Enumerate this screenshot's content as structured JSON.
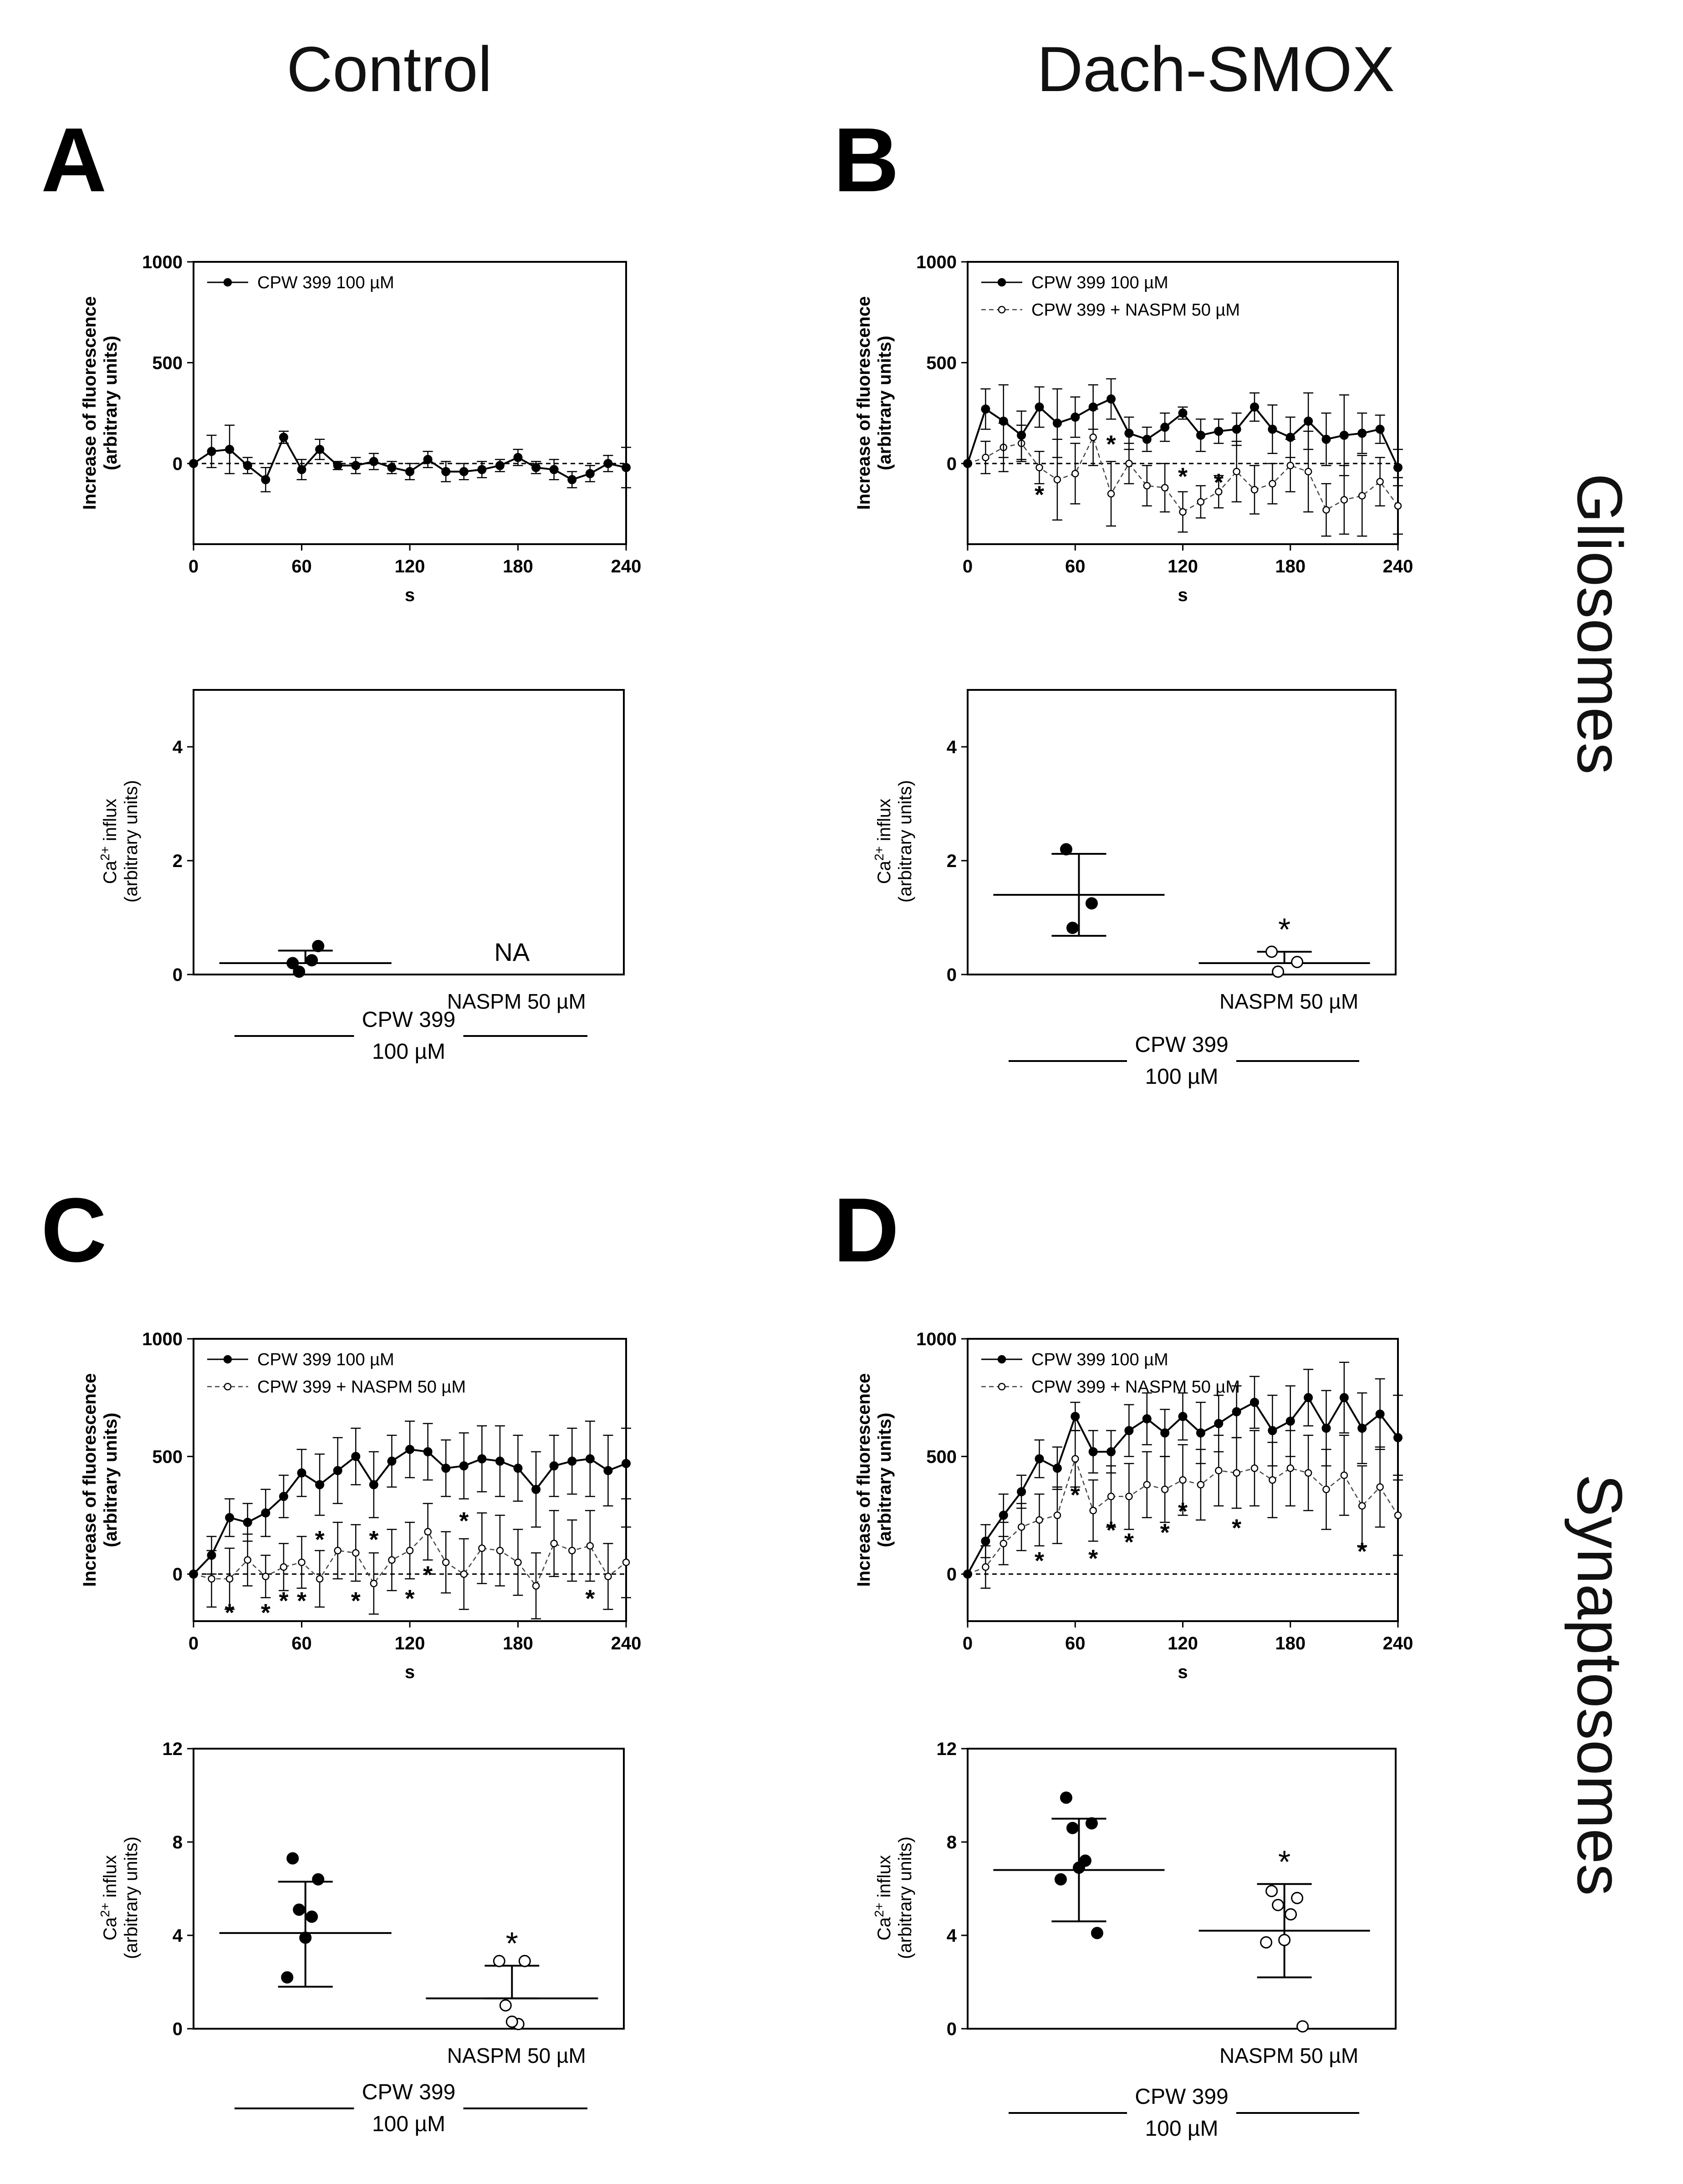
{
  "figure": {
    "columns": [
      "Control",
      "Dach-SMOX"
    ],
    "rows": [
      "Gliosomes",
      "Synaptosomes"
    ]
  },
  "chart_data": [
    {
      "id": "A-line",
      "panel": "A",
      "type": "line",
      "xlabel": "s",
      "ylabel": "Increase of fluorescence\n(arbitrary units)",
      "xlim": [
        0,
        240
      ],
      "ylim": [
        -400,
        1000
      ],
      "xticks": [
        0,
        60,
        120,
        180,
        240
      ],
      "yticks": [
        0,
        500,
        1000
      ],
      "baseline": 0,
      "series": [
        {
          "name": "CPW 399 100 µM",
          "style": "filled",
          "x": [
            0,
            10,
            20,
            30,
            40,
            50,
            60,
            70,
            80,
            90,
            100,
            110,
            120,
            130,
            140,
            150,
            160,
            170,
            180,
            190,
            200,
            210,
            220,
            230,
            240
          ],
          "y": [
            0,
            60,
            70,
            -10,
            -80,
            130,
            -30,
            70,
            -10,
            -10,
            10,
            -20,
            -40,
            20,
            -40,
            -40,
            -30,
            -10,
            30,
            -20,
            -30,
            -80,
            -50,
            0,
            -20
          ],
          "err": [
            0,
            80,
            120,
            40,
            60,
            30,
            50,
            50,
            20,
            40,
            40,
            30,
            40,
            40,
            50,
            40,
            40,
            30,
            40,
            30,
            50,
            40,
            40,
            40,
            100
          ]
        }
      ],
      "stars": []
    },
    {
      "id": "A-dot",
      "panel": "A",
      "type": "scatter",
      "ylabel": "Ca2+ influx\n(arbitrary units)",
      "ylim": [
        0,
        5
      ],
      "yticks": [
        0,
        2,
        4
      ],
      "categories": [
        "",
        "NASPM 50 µM"
      ],
      "group_label": [
        "CPW 399",
        "100 µM"
      ],
      "groups": [
        {
          "points": [
            0.2,
            0.5,
            0.05,
            0.25
          ],
          "mean": 0.2,
          "upper": 0.42,
          "lower": 0.2,
          "filled": true,
          "star": false
        },
        {
          "na": "NA"
        }
      ]
    },
    {
      "id": "B-line",
      "panel": "B",
      "type": "line",
      "xlabel": "s",
      "ylabel": "Increase of fluorescence\n(arbitrary units)",
      "xlim": [
        0,
        240
      ],
      "ylim": [
        -400,
        1000
      ],
      "xticks": [
        0,
        60,
        120,
        180,
        240
      ],
      "yticks": [
        0,
        500,
        1000
      ],
      "baseline": 0,
      "series": [
        {
          "name": "CPW 399 100 µM",
          "style": "filled",
          "x": [
            0,
            10,
            20,
            30,
            40,
            50,
            60,
            70,
            80,
            90,
            100,
            110,
            120,
            130,
            140,
            150,
            160,
            170,
            180,
            190,
            200,
            210,
            220,
            230,
            240
          ],
          "y": [
            0,
            270,
            210,
            140,
            280,
            200,
            230,
            280,
            320,
            150,
            120,
            180,
            250,
            140,
            160,
            170,
            280,
            170,
            130,
            210,
            120,
            140,
            150,
            170,
            -20
          ],
          "err": [
            0,
            100,
            180,
            120,
            100,
            170,
            100,
            110,
            100,
            80,
            60,
            70,
            30,
            80,
            60,
            80,
            70,
            120,
            100,
            140,
            130,
            200,
            100,
            70,
            90
          ]
        },
        {
          "name": "CPW 399 + NASPM 50  µM",
          "style": "open",
          "x": [
            0,
            10,
            20,
            30,
            40,
            50,
            60,
            70,
            80,
            90,
            100,
            110,
            120,
            130,
            140,
            150,
            160,
            170,
            180,
            190,
            200,
            210,
            220,
            230,
            240
          ],
          "y": [
            0,
            30,
            80,
            100,
            -20,
            -80,
            -50,
            130,
            -150,
            0,
            -110,
            -120,
            -240,
            -190,
            -140,
            -40,
            -130,
            -100,
            -10,
            -40,
            -230,
            -180,
            -160,
            -90,
            -210
          ],
          "err": [
            0,
            80,
            120,
            90,
            80,
            200,
            150,
            140,
            160,
            100,
            100,
            120,
            100,
            80,
            80,
            150,
            120,
            100,
            130,
            200,
            130,
            170,
            200,
            120,
            140
          ]
        }
      ],
      "stars": [
        {
          "x": 40,
          "y": -150
        },
        {
          "x": 80,
          "y": 100
        },
        {
          "x": 120,
          "y": -60
        },
        {
          "x": 140,
          "y": -90
        }
      ]
    },
    {
      "id": "B-dot",
      "panel": "B",
      "type": "scatter",
      "ylabel": "Ca2+ influx\n(arbitrary units)",
      "ylim": [
        0,
        5
      ],
      "yticks": [
        0,
        2,
        4
      ],
      "categories": [
        "",
        "NASPM 50 µM"
      ],
      "group_label": [
        "CPW 399",
        "100 µM"
      ],
      "groups": [
        {
          "points": [
            2.2,
            1.25,
            0.82
          ],
          "mean": 1.4,
          "upper": 2.12,
          "lower": 0.68,
          "filled": true,
          "star": false
        },
        {
          "points": [
            0.4,
            0.22,
            0.05
          ],
          "mean": 0.2,
          "upper": 0.4,
          "lower": 0.2,
          "filled": false,
          "star": true
        }
      ]
    },
    {
      "id": "C-line",
      "panel": "C",
      "type": "line",
      "xlabel": "s",
      "ylabel": "Increase of fluorescence\n(arbitrary units)",
      "xlim": [
        0,
        240
      ],
      "ylim": [
        -200,
        1000
      ],
      "xticks": [
        0,
        60,
        120,
        180,
        240
      ],
      "yticks": [
        0,
        500,
        1000
      ],
      "baseline": 0,
      "series": [
        {
          "name": "CPW 399 100 µM",
          "style": "filled",
          "x": [
            0,
            10,
            20,
            30,
            40,
            50,
            60,
            70,
            80,
            90,
            100,
            110,
            120,
            130,
            140,
            150,
            160,
            170,
            180,
            190,
            200,
            210,
            220,
            230,
            240
          ],
          "y": [
            0,
            80,
            240,
            220,
            260,
            330,
            430,
            380,
            440,
            500,
            380,
            480,
            530,
            520,
            450,
            460,
            490,
            480,
            450,
            360,
            460,
            480,
            490,
            440,
            470
          ],
          "err": [
            0,
            80,
            80,
            80,
            100,
            90,
            100,
            130,
            140,
            120,
            140,
            110,
            120,
            120,
            120,
            140,
            140,
            150,
            140,
            160,
            130,
            140,
            160,
            150,
            150
          ]
        },
        {
          "name": "CPW 399 + NASPM 50  µM",
          "style": "open",
          "x": [
            0,
            10,
            20,
            30,
            40,
            50,
            60,
            70,
            80,
            90,
            100,
            110,
            120,
            130,
            140,
            150,
            160,
            170,
            180,
            190,
            200,
            210,
            220,
            230,
            240
          ],
          "y": [
            0,
            -20,
            -20,
            60,
            -10,
            30,
            50,
            -20,
            100,
            90,
            -40,
            60,
            100,
            180,
            50,
            0,
            110,
            100,
            50,
            -50,
            130,
            100,
            120,
            -10,
            50
          ],
          "err": [
            0,
            120,
            130,
            110,
            90,
            100,
            110,
            120,
            120,
            120,
            130,
            130,
            120,
            120,
            130,
            150,
            150,
            150,
            140,
            140,
            140,
            130,
            150,
            140,
            150
          ]
        }
      ],
      "stars": [
        {
          "x": 20,
          "y": -160
        },
        {
          "x": 40,
          "y": -160
        },
        {
          "x": 50,
          "y": -110
        },
        {
          "x": 60,
          "y": -110
        },
        {
          "x": 70,
          "y": 150
        },
        {
          "x": 90,
          "y": -110
        },
        {
          "x": 100,
          "y": 150
        },
        {
          "x": 120,
          "y": -100
        },
        {
          "x": 130,
          "y": 0
        },
        {
          "x": 150,
          "y": 230
        },
        {
          "x": 220,
          "y": -100
        }
      ]
    },
    {
      "id": "C-dot",
      "panel": "C",
      "type": "scatter",
      "ylabel": "Ca2+ influx\n(arbitrary units)",
      "ylim": [
        0,
        12
      ],
      "yticks": [
        0,
        4,
        8,
        12
      ],
      "categories": [
        "",
        "NASPM 50 µM"
      ],
      "group_label": [
        "CPW 399",
        "100 µM"
      ],
      "groups": [
        {
          "points": [
            7.3,
            6.4,
            5.1,
            4.8,
            3.9,
            2.2
          ],
          "mean": 4.1,
          "upper": 6.3,
          "lower": 1.8,
          "filled": true,
          "star": false
        },
        {
          "points": [
            2.9,
            2.9,
            1.0,
            0.2,
            0.3
          ],
          "mean": 1.3,
          "upper": 2.7,
          "lower": 1.3,
          "filled": false,
          "star": true
        }
      ]
    },
    {
      "id": "D-line",
      "panel": "D",
      "type": "line",
      "xlabel": "s",
      "ylabel": "Increase of fluorescence\n(arbitrary units)",
      "xlim": [
        0,
        240
      ],
      "ylim": [
        -200,
        1000
      ],
      "xticks": [
        0,
        60,
        120,
        180,
        240
      ],
      "yticks": [
        0,
        500,
        1000
      ],
      "baseline": 0,
      "series": [
        {
          "name": "CPW 399 100 µM",
          "style": "filled",
          "x": [
            0,
            10,
            20,
            30,
            40,
            50,
            60,
            70,
            80,
            90,
            100,
            110,
            120,
            130,
            140,
            150,
            160,
            170,
            180,
            190,
            200,
            210,
            220,
            230,
            240
          ],
          "y": [
            0,
            140,
            250,
            350,
            490,
            450,
            670,
            520,
            520,
            610,
            660,
            600,
            670,
            600,
            640,
            690,
            730,
            610,
            650,
            750,
            620,
            750,
            620,
            680,
            580
          ],
          "err": [
            0,
            70,
            90,
            70,
            80,
            90,
            60,
            90,
            90,
            110,
            110,
            100,
            100,
            130,
            120,
            110,
            110,
            150,
            150,
            120,
            160,
            150,
            150,
            150,
            180
          ]
        },
        {
          "name": "CPW 399 + NASPM 50  µM",
          "style": "open",
          "x": [
            0,
            10,
            20,
            30,
            40,
            50,
            60,
            70,
            80,
            90,
            100,
            110,
            120,
            130,
            140,
            150,
            160,
            170,
            180,
            190,
            200,
            210,
            220,
            230,
            240
          ],
          "y": [
            0,
            30,
            130,
            200,
            230,
            250,
            490,
            270,
            330,
            330,
            380,
            360,
            400,
            380,
            440,
            430,
            450,
            400,
            450,
            430,
            360,
            420,
            290,
            370,
            250
          ],
          "err": [
            0,
            90,
            90,
            100,
            110,
            120,
            120,
            130,
            130,
            140,
            140,
            140,
            150,
            150,
            150,
            150,
            160,
            160,
            160,
            160,
            170,
            170,
            170,
            170,
            170
          ]
        }
      ],
      "stars": [
        {
          "x": 40,
          "y": 60
        },
        {
          "x": 60,
          "y": 340
        },
        {
          "x": 70,
          "y": 70
        },
        {
          "x": 80,
          "y": 190
        },
        {
          "x": 90,
          "y": 140
        },
        {
          "x": 110,
          "y": 180
        },
        {
          "x": 120,
          "y": 270
        },
        {
          "x": 150,
          "y": 200
        },
        {
          "x": 220,
          "y": 100
        }
      ]
    },
    {
      "id": "D-dot",
      "panel": "D",
      "type": "scatter",
      "ylabel": "Ca2+ influx\n(arbitrary units)",
      "ylim": [
        0,
        12
      ],
      "yticks": [
        0,
        4,
        8,
        12
      ],
      "categories": [
        "",
        "NASPM 50 µM"
      ],
      "group_label": [
        "CPW 399",
        "100 µM"
      ],
      "groups": [
        {
          "points": [
            9.9,
            8.8,
            8.6,
            7.2,
            6.9,
            6.4,
            4.1
          ],
          "mean": 6.8,
          "upper": 9.0,
          "lower": 4.6,
          "filled": true,
          "star": false
        },
        {
          "points": [
            5.9,
            5.6,
            5.3,
            4.9,
            3.8,
            3.7,
            0.1
          ],
          "mean": 4.2,
          "upper": 6.2,
          "lower": 2.2,
          "filled": false,
          "star": true
        }
      ]
    }
  ]
}
